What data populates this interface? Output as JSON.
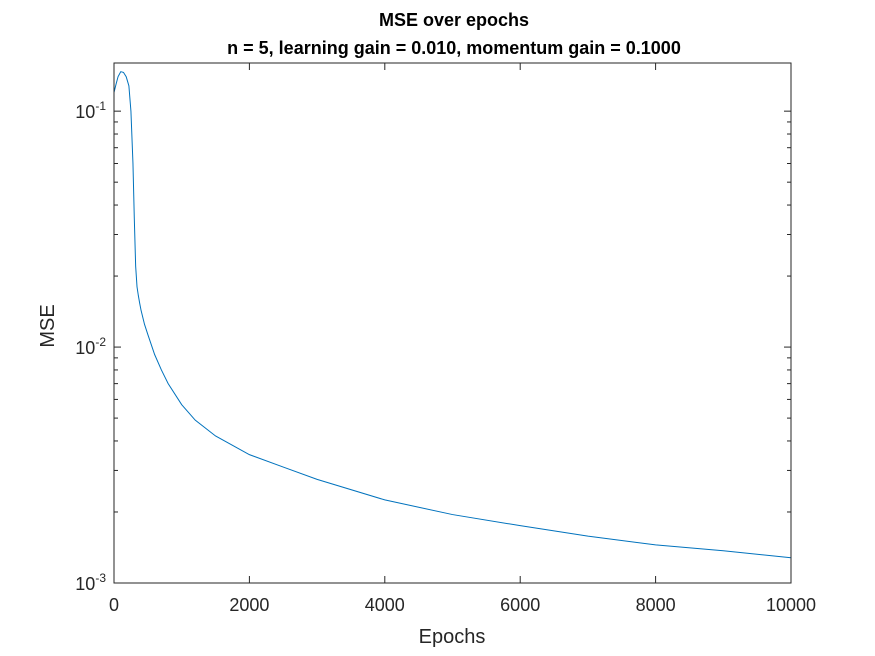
{
  "chart_data": {
    "type": "line",
    "title": "MSE over epochs",
    "subtitle": "n = 5, learning gain = 0.010, momentum gain = 0.1000",
    "xlabel": "Epochs",
    "ylabel": "MSE",
    "xlim": [
      0,
      10000
    ],
    "ylim": [
      0.001,
      0.16
    ],
    "yscale": "log",
    "grid": false,
    "x_ticks": [
      {
        "value": 0,
        "label": "0"
      },
      {
        "value": 2000,
        "label": "2000"
      },
      {
        "value": 4000,
        "label": "4000"
      },
      {
        "value": 6000,
        "label": "6000"
      },
      {
        "value": 8000,
        "label": "8000"
      },
      {
        "value": 10000,
        "label": "10000"
      }
    ],
    "y_ticks": [
      {
        "value": 0.001,
        "base": "10",
        "exp": "-3"
      },
      {
        "value": 0.01,
        "base": "10",
        "exp": "-2"
      },
      {
        "value": 0.1,
        "base": "10",
        "exp": "-1"
      }
    ],
    "line_color": "#0072BD",
    "series": [
      {
        "x": [
          0,
          30,
          60,
          100,
          140,
          180,
          220,
          250,
          280,
          300,
          320,
          340,
          360,
          380,
          400,
          450,
          500,
          600,
          700,
          800,
          1000,
          1200,
          1500,
          2000,
          2500,
          3000,
          4000,
          5000,
          6000,
          7000,
          8000,
          9000,
          10000
        ],
        "y": [
          0.12,
          0.13,
          0.14,
          0.147,
          0.146,
          0.14,
          0.128,
          0.1,
          0.06,
          0.035,
          0.022,
          0.018,
          0.0165,
          0.0153,
          0.0143,
          0.0125,
          0.0113,
          0.0093,
          0.008,
          0.007,
          0.0057,
          0.0049,
          0.0042,
          0.0035,
          0.0031,
          0.00275,
          0.00225,
          0.00195,
          0.00175,
          0.00158,
          0.00145,
          0.00137,
          0.00128
        ]
      }
    ]
  }
}
